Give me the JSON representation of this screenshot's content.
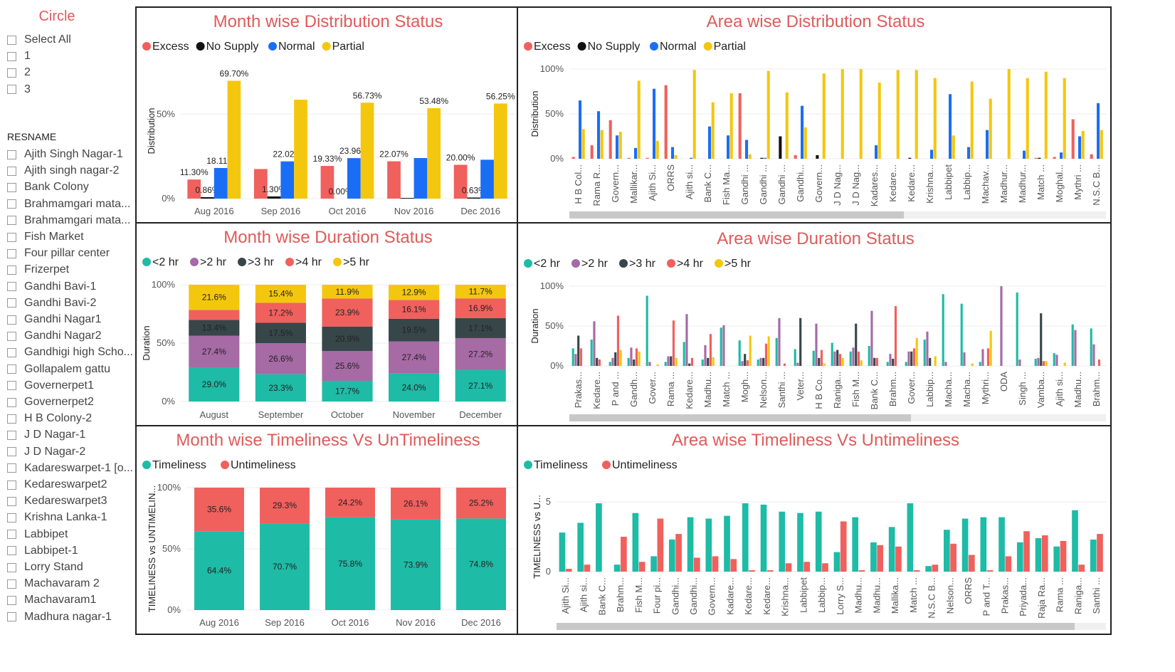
{
  "slicer": {
    "circle_title": "Circle",
    "circle_options": [
      "Select All",
      "1",
      "2",
      "3"
    ],
    "resname_title": "RESNAME",
    "resname_options": [
      "Ajith Singh Nagar-1",
      "Ajith singh nagar-2",
      "Bank Colony",
      "Brahmamgari mata...",
      "Brahmamgari mata...",
      "Fish Market",
      "Four pillar center",
      "Frizerpet",
      "Gandhi Bavi-1",
      "Gandhi Bavi-2",
      "Gandhi Nagar1",
      "Gandhi Nagar2",
      "Gandhigi high Scho...",
      "Gollapalem gattu",
      "Governerpet1",
      "Governerpet2",
      "H B Colony-2",
      "J D Nagar-1",
      "J D Nagar-2",
      "Kadareswarpet-1 [o...",
      "Kedareswarpet2",
      "Kedareswarpet3",
      "Krishna Lanka-1",
      "Labbipet",
      "Labbipet-1",
      "Lorry Stand",
      "Machavaram 2",
      "Machavaram1",
      "Madhura nagar-1"
    ]
  },
  "colors": {
    "excess": "#f0605d",
    "no_supply": "#111111",
    "normal": "#1a6ef5",
    "partial": "#f4c70f",
    "lt2": "#1ebba6",
    "gt2": "#a66aa5",
    "gt3": "#374649",
    "gt4": "#f0605d",
    "gt5": "#f4c70f",
    "timeliness": "#1ebba6",
    "untimeliness": "#f0605d",
    "title": "#e05a5a"
  },
  "chart_data": [
    {
      "id": "month-dist",
      "type": "bar",
      "title": "Month wise Distribution Status",
      "ylabel": "Distribution",
      "yticks": [
        "0%",
        "50%"
      ],
      "ylim": [
        0,
        80
      ],
      "categories": [
        "Aug 2016",
        "Sep 2016",
        "Oct 2016",
        "Nov 2016",
        "Dec 2016"
      ],
      "series": [
        {
          "name": "Excess",
          "color_key": "excess",
          "values": [
            11.3,
            17.5,
            19.33,
            22.07,
            20.0
          ],
          "labels": [
            "11.30%",
            "",
            "19.33%",
            "22.07%",
            "20.00%"
          ]
        },
        {
          "name": "No Supply",
          "color_key": "no_supply",
          "values": [
            0.86,
            1.3,
            0.0,
            0.4,
            0.63
          ],
          "labels": [
            "0.86%",
            "1.30%",
            "0.00%",
            "",
            "0.63%"
          ]
        },
        {
          "name": "Normal",
          "color_key": "normal",
          "values": [
            18.11,
            22.02,
            23.96,
            24.0,
            23.0
          ],
          "labels": [
            "18.11%",
            "22.02%",
            "23.96%",
            "",
            ""
          ]
        },
        {
          "name": "Partial",
          "color_key": "partial",
          "values": [
            69.7,
            58.5,
            56.73,
            53.48,
            56.25
          ],
          "labels": [
            "69.70%",
            "",
            "56.73%",
            "53.48%",
            "56.25%"
          ]
        }
      ]
    },
    {
      "id": "area-dist",
      "type": "bar",
      "title": "Area wise Distribution Status",
      "ylabel": "Distribution",
      "yticks": [
        "0%",
        "50%",
        "100%"
      ],
      "ylim": [
        0,
        100
      ],
      "categories": [
        "H B Col...",
        "Rama R...",
        "Govern...",
        "Mallikar...",
        "Ajith Si...",
        "ORRS",
        "Ajith si...",
        "Bank C...",
        "Fish Ma...",
        "Gandhi ...",
        "Gandhi ...",
        "Gandhi ...",
        "Gandhi...",
        "Govern...",
        "J D Nag...",
        "J D Nag...",
        "Kadares...",
        "Kedare...",
        "Kedare...",
        "Krishna...",
        "Labbipet",
        "Labbip...",
        "Machav...",
        "Madhur...",
        "Madhur...",
        "Match ...",
        "Moghal...",
        "Mythri ...",
        "N.S.C B..."
      ],
      "series": [
        {
          "name": "Excess",
          "color_key": "excess",
          "values": [
            2,
            15,
            43,
            1,
            1,
            82,
            0,
            0,
            0,
            73,
            0,
            0,
            4,
            0,
            0,
            0,
            0,
            0,
            0,
            0,
            0,
            0,
            0,
            0,
            0,
            1,
            2,
            44,
            5
          ]
        },
        {
          "name": "No Supply",
          "color_key": "no_supply",
          "values": [
            0,
            0,
            0,
            0,
            0,
            0,
            0,
            0,
            0,
            0,
            1,
            25,
            0,
            4,
            0,
            0,
            0,
            0,
            1,
            0,
            0,
            0,
            0,
            0,
            0,
            1,
            0,
            0,
            0
          ]
        },
        {
          "name": "Normal",
          "color_key": "normal",
          "values": [
            65,
            53,
            26,
            12,
            78,
            13,
            1,
            36,
            26,
            21,
            1,
            0,
            59,
            0,
            0,
            0,
            15,
            0,
            0,
            10,
            72,
            13,
            32,
            0,
            9,
            0,
            7,
            25,
            62
          ]
        },
        {
          "name": "Partial",
          "color_key": "partial",
          "values": [
            33,
            32,
            30,
            87,
            20,
            4,
            99,
            63,
            73,
            5,
            98,
            74,
            35,
            95,
            100,
            100,
            85,
            99,
            99,
            90,
            26,
            86,
            67,
            100,
            90,
            97,
            90,
            31,
            32
          ]
        }
      ]
    },
    {
      "id": "month-dur",
      "type": "bar",
      "title": "Month wise Duration Status",
      "ylabel": "Duration",
      "yticks": [
        "0%",
        "50%",
        "100%"
      ],
      "ylim": [
        0,
        100
      ],
      "stacked": true,
      "categories": [
        "August",
        "September",
        "October",
        "November",
        "December"
      ],
      "series": [
        {
          "name": "<2 hr",
          "color_key": "lt2",
          "values": [
            29.0,
            23.3,
            17.7,
            24.0,
            27.1
          ],
          "labels": [
            "29.0%",
            "23.3%",
            "17.7%",
            "24.0%",
            "27.1%"
          ]
        },
        {
          "name": ">2 hr",
          "color_key": "gt2",
          "values": [
            27.4,
            26.6,
            25.6,
            27.4,
            27.2
          ],
          "labels": [
            "27.4%",
            "26.6%",
            "25.6%",
            "27.4%",
            "27.2%"
          ]
        },
        {
          "name": ">3 hr",
          "color_key": "gt3",
          "values": [
            13.4,
            17.5,
            20.9,
            19.5,
            17.1
          ],
          "labels": [
            "13.4%",
            "17.5%",
            "20.9%",
            "19.5%",
            "17.1%"
          ]
        },
        {
          "name": ">4 hr",
          "color_key": "gt4",
          "values": [
            8.6,
            17.2,
            23.9,
            16.1,
            16.9
          ],
          "labels": [
            "",
            "17.2%",
            "23.9%",
            "16.1%",
            "16.9%"
          ]
        },
        {
          "name": ">5 hr",
          "color_key": "gt5",
          "values": [
            21.6,
            15.4,
            11.9,
            12.9,
            11.7
          ],
          "labels": [
            "21.6%",
            "15.4%",
            "11.9%",
            "12.9%",
            "11.7%"
          ]
        }
      ]
    },
    {
      "id": "area-dur",
      "type": "bar",
      "title": "Area wise Duration Status",
      "ylabel": "Duration",
      "yticks": [
        "0%",
        "50%",
        "100%"
      ],
      "ylim": [
        0,
        100
      ],
      "categories": [
        "Prakas...",
        "Kedare...",
        "P and ...",
        "Gandh...",
        "Gover...",
        "Rama ...",
        "Kedare...",
        "Madhu...",
        "Match ...",
        "Mogh...",
        "Nelson...",
        "Santhi ...",
        "Veter...",
        "H B Co...",
        "Raniga...",
        "Fish M...",
        "Bank C...",
        "Brahm...",
        "Gover...",
        "Labbip...",
        "Macha...",
        "Macha...",
        "Mythri...",
        "ODA",
        "Singh ...",
        "Vamba...",
        "Ajith si...",
        "Madhu...",
        "Brahm..."
      ],
      "series": [
        {
          "name": "<2 hr",
          "color_key": "lt2",
          "values": [
            22,
            33,
            5,
            10,
            88,
            5,
            30,
            8,
            48,
            32,
            8,
            35,
            21,
            19,
            29,
            18,
            25,
            5,
            5,
            33,
            90,
            78,
            5,
            0,
            92,
            9,
            16,
            52,
            47
          ]
        },
        {
          "name": ">2 hr",
          "color_key": "gt2",
          "values": [
            15,
            56,
            10,
            23,
            5,
            12,
            65,
            26,
            51,
            6,
            10,
            60,
            4,
            53,
            18,
            23,
            69,
            15,
            18,
            43,
            5,
            17,
            21,
            100,
            8,
            10,
            14,
            45,
            27
          ]
        },
        {
          "name": ">3 hr",
          "color_key": "gt3",
          "values": [
            38,
            10,
            17,
            8,
            0,
            12,
            3,
            10,
            0,
            15,
            10,
            0,
            60,
            10,
            20,
            53,
            10,
            9,
            18,
            10,
            0,
            0,
            0,
            0,
            0,
            66,
            0,
            0,
            0
          ]
        },
        {
          "name": ">4 hr",
          "color_key": "gt4",
          "values": [
            22,
            8,
            63,
            22,
            0,
            57,
            10,
            40,
            0,
            7,
            28,
            3,
            0,
            20,
            15,
            18,
            10,
            75,
            22,
            0,
            0,
            0,
            22,
            0,
            0,
            6,
            0,
            0,
            8
          ]
        },
        {
          "name": ">5 hr",
          "color_key": "gt5",
          "values": [
            0,
            0,
            20,
            18,
            2,
            10,
            0,
            11,
            0,
            38,
            37,
            0,
            0,
            3,
            10,
            7,
            0,
            0,
            35,
            12,
            0,
            3,
            44,
            0,
            0,
            6,
            4,
            0,
            0
          ]
        }
      ]
    },
    {
      "id": "month-time",
      "type": "bar",
      "title": "Month wise Timeliness Vs UnTimeliness",
      "ylabel": "TIMELINESS vs UNTIMELIN...",
      "yticks": [
        "0%",
        "50%",
        "100%"
      ],
      "ylim": [
        0,
        100
      ],
      "stacked": true,
      "categories": [
        "Aug 2016",
        "Sep 2016",
        "Oct 2016",
        "Nov 2016",
        "Dec 2016"
      ],
      "series": [
        {
          "name": "Timeliness",
          "color_key": "timeliness",
          "values": [
            64.4,
            70.7,
            75.8,
            73.9,
            74.8
          ],
          "labels": [
            "64.4%",
            "70.7%",
            "75.8%",
            "73.9%",
            "74.8%"
          ]
        },
        {
          "name": "Untimeliness",
          "color_key": "untimeliness",
          "values": [
            35.6,
            29.3,
            24.2,
            26.1,
            25.2
          ],
          "labels": [
            "35.6%",
            "29.3%",
            "24.2%",
            "26.1%",
            "25.2%"
          ]
        }
      ]
    },
    {
      "id": "area-time",
      "type": "bar",
      "title": "Area wise Timeliness Vs Untimeliness",
      "ylabel": "TIMELINESS vs U...",
      "yticks": [
        "0",
        "5"
      ],
      "ylim": [
        0,
        5
      ],
      "categories": [
        "Ajith Si...",
        "Ajith si...",
        "Bank C...",
        "Brahm...",
        "Fish M...",
        "Four pi...",
        "Gandhi...",
        "Gandhi...",
        "Govern...",
        "Kadare...",
        "Kedare...",
        "Kedare...",
        "Krishna...",
        "Labbipet",
        "Labbip...",
        "Lorry S...",
        "Madhu...",
        "Madhu...",
        "Mallika...",
        "Match ...",
        "N.S.C B...",
        "Nelson...",
        "ORRS",
        "P and T...",
        "Prakas...",
        "Priyada...",
        "Raja Ra...",
        "Rama ...",
        "Raniga...",
        "Santhi ..."
      ],
      "series": [
        {
          "name": "Timeliness",
          "color_key": "timeliness",
          "values": [
            2.8,
            3.5,
            4.9,
            0.5,
            4.2,
            1.1,
            2.3,
            3.9,
            3.8,
            4.0,
            4.9,
            4.8,
            4.3,
            4.2,
            4.3,
            1.4,
            3.9,
            2.1,
            3.2,
            4.9,
            0.4,
            3.0,
            3.8,
            3.9,
            3.9,
            2.1,
            2.4,
            1.8,
            4.4,
            2.3
          ]
        },
        {
          "name": "Untimeliness",
          "color_key": "untimeliness",
          "values": [
            0.2,
            0.5,
            0.0,
            2.5,
            0.7,
            3.8,
            2.7,
            1.0,
            1.1,
            0.9,
            0.1,
            0.1,
            0.6,
            0.7,
            0.6,
            3.6,
            0.1,
            1.9,
            1.8,
            0.1,
            0.5,
            2.0,
            1.2,
            0.1,
            1.1,
            2.9,
            2.6,
            2.2,
            0.5,
            2.7
          ]
        }
      ]
    }
  ]
}
